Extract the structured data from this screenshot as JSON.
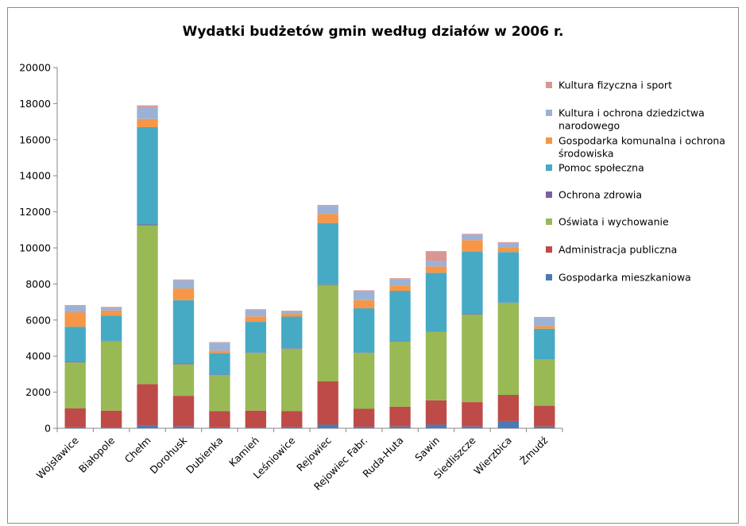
{
  "chart_data": {
    "type": "bar",
    "stacked": true,
    "title": "Wydatki budżetów gmin według działów w 2006 r.",
    "xlabel": "",
    "ylabel": "",
    "ylim": [
      0,
      20000
    ],
    "yticks": [
      0,
      2000,
      4000,
      6000,
      8000,
      10000,
      12000,
      14000,
      16000,
      18000,
      20000
    ],
    "grid": false,
    "legend_position": "right",
    "categories": [
      "Wojsławice",
      "Białopole",
      "Chełm",
      "Dorohusk",
      "Dubienka",
      "Kamień",
      "Leśniowice",
      "Rejowiec",
      "Rejowiec Fabr.",
      "Ruda-Huta",
      "Sawin",
      "Siedliszcze",
      "Wierzbica",
      "Żmudź"
    ],
    "series": [
      {
        "name": "Gospodarka mieszkaniowa",
        "color": "#4a7ab5",
        "values": [
          50,
          30,
          150,
          100,
          50,
          30,
          60,
          200,
          80,
          100,
          200,
          100,
          400,
          100
        ]
      },
      {
        "name": "Administracja publiczna",
        "color": "#be4b48",
        "values": [
          1050,
          950,
          2300,
          1700,
          900,
          950,
          900,
          2400,
          1000,
          1100,
          1350,
          1350,
          1450,
          1150
        ]
      },
      {
        "name": "Oświata i wychowanie",
        "color": "#98b954",
        "values": [
          2550,
          3850,
          8800,
          1750,
          2000,
          3200,
          3450,
          5350,
          3100,
          3600,
          3800,
          4850,
          5100,
          2550
        ]
      },
      {
        "name": "Ochrona zdrowia",
        "color": "#7d5fa0",
        "values": [
          30,
          20,
          50,
          50,
          20,
          20,
          30,
          30,
          20,
          20,
          20,
          30,
          20,
          20
        ]
      },
      {
        "name": "Pomoc społeczna",
        "color": "#46aac5",
        "values": [
          1950,
          1400,
          5400,
          3500,
          1200,
          1700,
          1750,
          3400,
          2450,
          2800,
          3250,
          3450,
          2800,
          1700
        ]
      },
      {
        "name": "Gospodarka komunalna i ochrona środowiska",
        "color": "#f79646",
        "values": [
          800,
          280,
          450,
          650,
          130,
          300,
          150,
          500,
          450,
          300,
          350,
          650,
          250,
          150
        ]
      },
      {
        "name": "Kultura i ochrona dziedzictwa narodowego",
        "color": "#9bb2d6",
        "values": [
          350,
          150,
          650,
          450,
          450,
          350,
          150,
          450,
          500,
          350,
          300,
          300,
          250,
          450
        ]
      },
      {
        "name": "Kultura fizyczna i sport",
        "color": "#d99694",
        "values": [
          50,
          50,
          100,
          50,
          30,
          50,
          30,
          50,
          50,
          50,
          550,
          50,
          50,
          50
        ]
      }
    ],
    "legend_labels": [
      {
        "lines": [
          "Kultura fizyczna i sport"
        ]
      },
      {
        "lines": [
          "Kultura i ochrona dziedzictwa",
          "narodowego"
        ]
      },
      {
        "lines": [
          "Gospodarka komunalna i ochrona",
          "środowiska"
        ]
      },
      {
        "lines": [
          "Pomoc społeczna"
        ]
      },
      {
        "lines": [
          "Ochrona zdrowia"
        ]
      },
      {
        "lines": [
          "Oświata i wychowanie"
        ]
      },
      {
        "lines": [
          "Administracja publiczna"
        ]
      },
      {
        "lines": [
          "Gospodarka mieszkaniowa"
        ]
      }
    ]
  }
}
